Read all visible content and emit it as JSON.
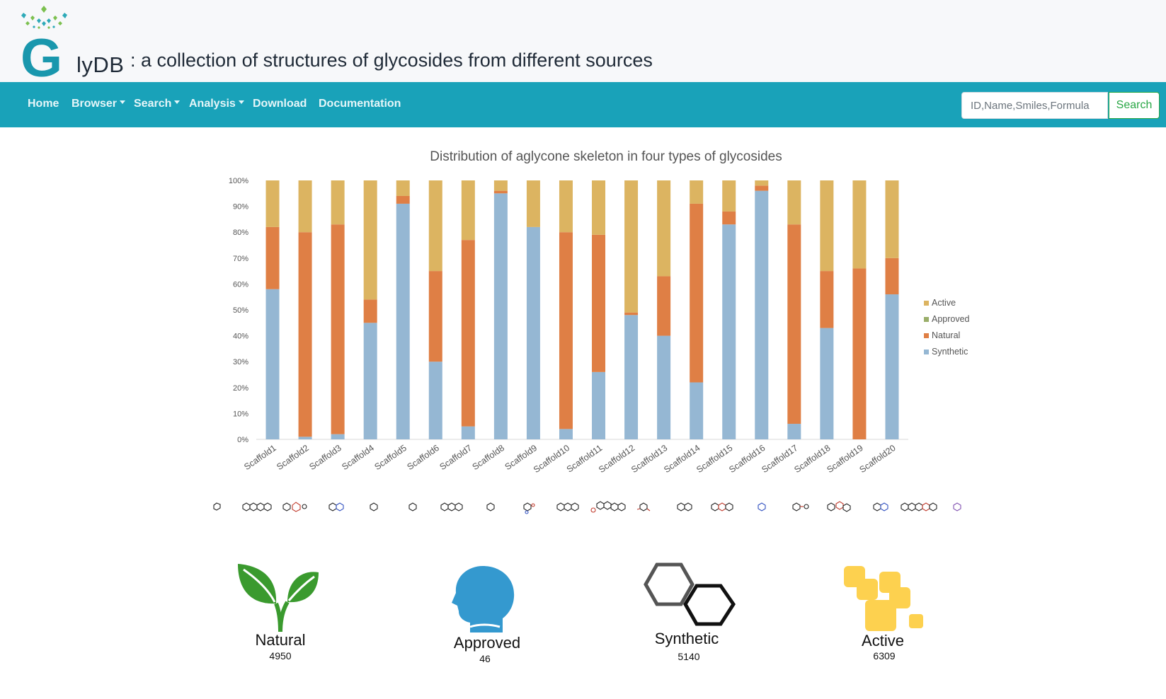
{
  "header": {
    "brand_letter": "G",
    "brand_rest": "lyDB",
    "subtitle": ": a collection of structures of glycosides from different sources"
  },
  "nav": {
    "items": [
      {
        "label": "Home",
        "dropdown": false
      },
      {
        "label": "Browser",
        "dropdown": true
      },
      {
        "label": "Search",
        "dropdown": true
      },
      {
        "label": "Analysis",
        "dropdown": true
      },
      {
        "label": "Download",
        "dropdown": false
      },
      {
        "label": "Documentation",
        "dropdown": false
      }
    ],
    "search_placeholder": "ID,Name,Smiles,Formula",
    "search_button": "Search"
  },
  "chart_data": {
    "type": "bar",
    "stacked": true,
    "title": "Distribution of aglycone skeleton in four types of glycosides",
    "ylim": [
      0,
      100
    ],
    "yticks": [
      "0%",
      "10%",
      "20%",
      "30%",
      "40%",
      "50%",
      "60%",
      "70%",
      "80%",
      "90%",
      "100%"
    ],
    "legend_position": "right",
    "categories": [
      "Scaffold1",
      "Scaffold2",
      "Scaffold3",
      "Scaffold4",
      "Scaffold5",
      "Scaffold6",
      "Scaffold7",
      "Scaffold8",
      "Scaffold9",
      "Scaffold10",
      "Scaffold11",
      "Scaffold12",
      "Scaffold13",
      "Scaffold14",
      "Scaffold15",
      "Scaffold16",
      "Scaffold17",
      "Scaffold18",
      "Scaffold19",
      "Scaffold20"
    ],
    "series": [
      {
        "name": "Synthetic",
        "color": "#95b7d3",
        "values": [
          58,
          1,
          2,
          45,
          91,
          30,
          5,
          95,
          82,
          4,
          26,
          48,
          40,
          22,
          83,
          96,
          6,
          43,
          0,
          56
        ]
      },
      {
        "name": "Natural",
        "color": "#df7f45",
        "values": [
          24,
          79,
          81,
          9,
          3,
          35,
          72,
          1,
          0,
          76,
          53,
          1,
          23,
          69,
          5,
          2,
          77,
          22,
          66,
          14
        ]
      },
      {
        "name": "Approved",
        "color": "#9aae6a",
        "values": [
          0,
          0,
          0,
          0,
          0,
          0,
          0,
          0,
          0,
          0,
          0,
          0,
          0,
          0,
          0,
          0,
          0,
          0,
          0,
          0
        ]
      },
      {
        "name": "Active",
        "color": "#dcb461",
        "values": [
          18,
          20,
          17,
          46,
          6,
          35,
          23,
          4,
          18,
          20,
          21,
          51,
          37,
          9,
          12,
          2,
          17,
          35,
          34,
          30
        ]
      }
    ],
    "legend_order": [
      "Active",
      "Approved",
      "Natural",
      "Synthetic"
    ]
  },
  "stats": [
    {
      "label": "Natural",
      "count": "4950",
      "icon": "leaf-sprout-icon",
      "color": "#3a9a2e"
    },
    {
      "label": "Approved",
      "count": "46",
      "icon": "human-head-icon",
      "color": "#3499cf"
    },
    {
      "label": "Synthetic",
      "count": "5140",
      "icon": "hexagons-icon",
      "color": "#333333"
    },
    {
      "label": "Active",
      "count": "6309",
      "icon": "puzzle-blocks-icon",
      "color": "#fdd14f"
    }
  ]
}
